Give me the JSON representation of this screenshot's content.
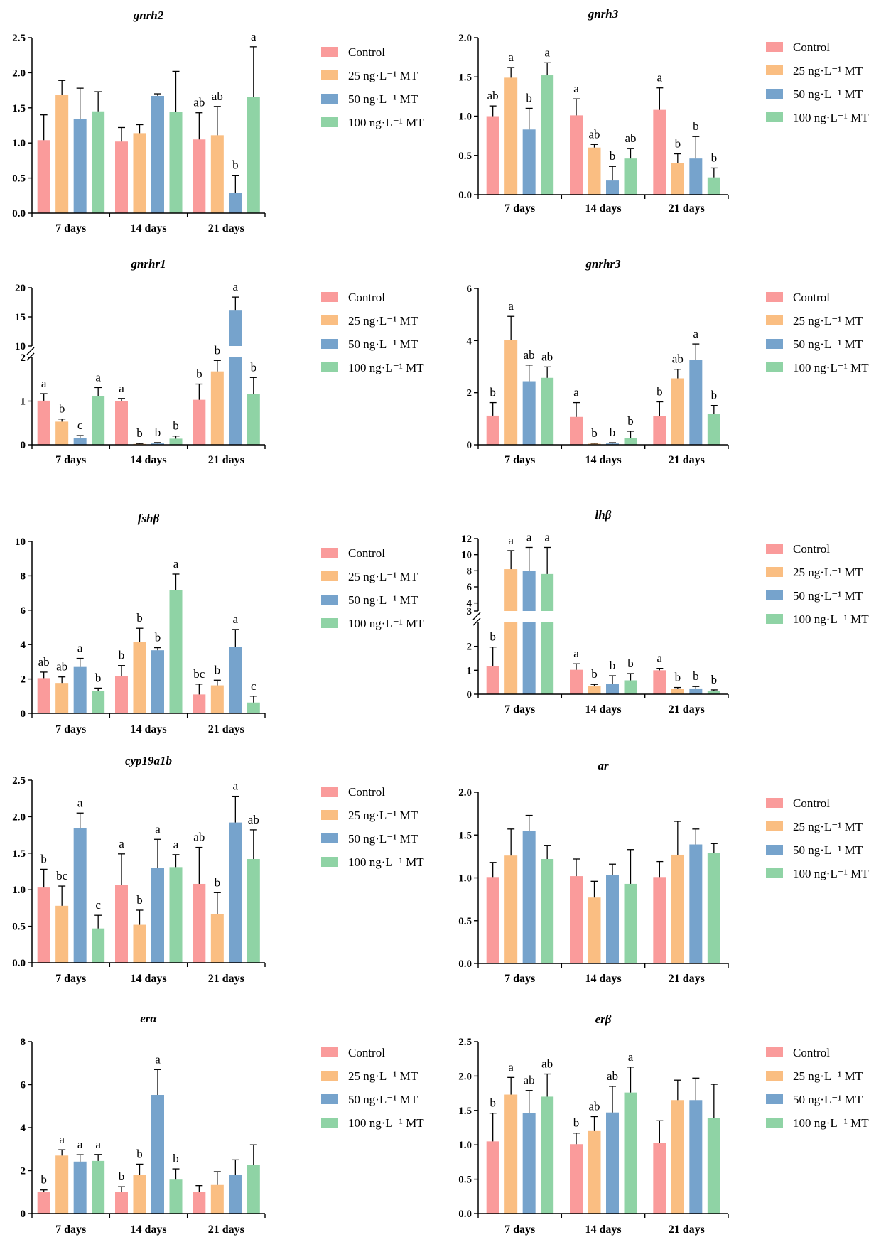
{
  "colors": {
    "Control": "#fa9b9b",
    "25 ng·L⁻¹ MT": "#fabe82",
    "50 ng·L⁻¹ MT": "#76a3cc",
    "100 ng·L⁻¹ MT": "#8fd3a5"
  },
  "chart_data": [
    {
      "type": "bar",
      "title": "gnrh2",
      "categories": [
        "7 days",
        "14 days",
        "21 days"
      ],
      "ylim": [
        0,
        2.5
      ],
      "yticks": [
        "0.0",
        "0.5",
        "1.0",
        "1.5",
        "2.0",
        "2.5"
      ],
      "legend": [
        "Control",
        "25 ng·L⁻¹ MT",
        "50 ng·L⁻¹ MT",
        "100 ng·L⁻¹ MT"
      ],
      "series": [
        {
          "name": "Control",
          "values": [
            1.04,
            1.02,
            1.05
          ],
          "errors": [
            0.36,
            0.2,
            0.38
          ],
          "labels": [
            "",
            "",
            "ab"
          ]
        },
        {
          "name": "25 ng·L⁻¹ MT",
          "values": [
            1.68,
            1.14,
            1.11
          ],
          "errors": [
            0.21,
            0.12,
            0.41
          ],
          "labels": [
            "",
            "",
            "ab"
          ]
        },
        {
          "name": "50 ng·L⁻¹ MT",
          "values": [
            1.34,
            1.67,
            0.29
          ],
          "errors": [
            0.44,
            0.03,
            0.25
          ],
          "labels": [
            "",
            "",
            "b"
          ]
        },
        {
          "name": "100 ng·L⁻¹ MT",
          "values": [
            1.45,
            1.44,
            1.65
          ],
          "errors": [
            0.28,
            0.58,
            0.72
          ],
          "labels": [
            "",
            "",
            "a"
          ]
        }
      ]
    },
    {
      "type": "bar",
      "title": "gnrh3",
      "categories": [
        "7 days",
        "14 days",
        "21 days"
      ],
      "ylim": [
        0,
        2.0
      ],
      "yticks": [
        "0.0",
        "0.5",
        "1.0",
        "1.5",
        "2.0"
      ],
      "legend": [
        "Control",
        "25 ng·L⁻¹ MT",
        "50 ng·L⁻¹ MT",
        "100 ng·L⁻¹ MT"
      ],
      "series": [
        {
          "name": "Control",
          "values": [
            1.0,
            1.01,
            1.08
          ],
          "errors": [
            0.13,
            0.21,
            0.28
          ],
          "labels": [
            "ab",
            "a",
            "a"
          ]
        },
        {
          "name": "25 ng·L⁻¹ MT",
          "values": [
            1.49,
            0.6,
            0.4
          ],
          "errors": [
            0.13,
            0.04,
            0.12
          ],
          "labels": [
            "a",
            "ab",
            "b"
          ]
        },
        {
          "name": "50 ng·L⁻¹ MT",
          "values": [
            0.83,
            0.18,
            0.46
          ],
          "errors": [
            0.27,
            0.18,
            0.28
          ],
          "labels": [
            "b",
            "b",
            "b"
          ]
        },
        {
          "name": "100 ng·L⁻¹ MT",
          "values": [
            1.52,
            0.46,
            0.22
          ],
          "errors": [
            0.16,
            0.13,
            0.12
          ],
          "labels": [
            "a",
            "ab",
            "b"
          ]
        }
      ]
    },
    {
      "type": "bar",
      "title": "gnrhr1",
      "categories": [
        "7 days",
        "14 days",
        "21 days"
      ],
      "ylim": [
        0,
        20
      ],
      "broken_axis": {
        "lower": [
          0,
          2
        ],
        "upper": [
          10,
          20
        ]
      },
      "yticks": [
        "0",
        "1",
        "2",
        "10",
        "15",
        "20"
      ],
      "legend": [
        "Control",
        "25 ng·L⁻¹ MT",
        "50 ng·L⁻¹ MT",
        "100 ng·L⁻¹ MT"
      ],
      "series": [
        {
          "name": "Control",
          "values": [
            1.01,
            1.0,
            1.03
          ],
          "errors": [
            0.16,
            0.06,
            0.36
          ],
          "labels": [
            "a",
            "a",
            "b"
          ]
        },
        {
          "name": "25 ng·L⁻¹ MT",
          "values": [
            0.53,
            0.02,
            1.68
          ],
          "errors": [
            0.06,
            0.01,
            0.25
          ],
          "labels": [
            "b",
            "b",
            "b"
          ]
        },
        {
          "name": "50 ng·L⁻¹ MT",
          "values": [
            0.16,
            0.03,
            16.2
          ],
          "errors": [
            0.05,
            0.02,
            2.2
          ],
          "labels": [
            "c",
            "b",
            "a"
          ]
        },
        {
          "name": "100 ng·L⁻¹ MT",
          "values": [
            1.11,
            0.14,
            1.17
          ],
          "errors": [
            0.2,
            0.06,
            0.37
          ],
          "labels": [
            "a",
            "b",
            "b"
          ]
        }
      ]
    },
    {
      "type": "bar",
      "title": "gnrhr3",
      "categories": [
        "7 days",
        "14 days",
        "21 days"
      ],
      "ylim": [
        0,
        6
      ],
      "yticks": [
        "0",
        "2",
        "4",
        "6"
      ],
      "legend": [
        "Control",
        "25 ng·L⁻¹ MT",
        "50 ng·L⁻¹ MT",
        "100 ng·L⁻¹ MT"
      ],
      "series": [
        {
          "name": "Control",
          "values": [
            1.12,
            1.07,
            1.1
          ],
          "errors": [
            0.5,
            0.55,
            0.55
          ],
          "labels": [
            "b",
            "a",
            "b"
          ]
        },
        {
          "name": "25 ng·L⁻¹ MT",
          "values": [
            4.03,
            0.04,
            2.55
          ],
          "errors": [
            0.9,
            0.02,
            0.35
          ],
          "labels": [
            "a",
            "b",
            "ab"
          ]
        },
        {
          "name": "50 ng·L⁻¹ MT",
          "values": [
            2.44,
            0.05,
            3.25
          ],
          "errors": [
            0.62,
            0.03,
            0.62
          ],
          "labels": [
            "ab",
            "b",
            "a"
          ]
        },
        {
          "name": "100 ng·L⁻¹ MT",
          "values": [
            2.57,
            0.27,
            1.19
          ],
          "errors": [
            0.42,
            0.25,
            0.32
          ],
          "labels": [
            "ab",
            "b",
            "b"
          ]
        }
      ]
    },
    {
      "type": "bar",
      "title": "fshβ",
      "categories": [
        "7 days",
        "14 days",
        "21 days"
      ],
      "ylim": [
        0,
        10
      ],
      "yticks": [
        "0",
        "2",
        "4",
        "6",
        "8",
        "10"
      ],
      "legend": [
        "Control",
        "25 ng·L⁻¹ MT",
        "50 ng·L⁻¹ MT",
        "100 ng·L⁻¹ MT"
      ],
      "series": [
        {
          "name": "Control",
          "values": [
            2.05,
            2.18,
            1.1
          ],
          "errors": [
            0.35,
            0.6,
            0.6
          ],
          "labels": [
            "ab",
            "b",
            "bc"
          ]
        },
        {
          "name": "25 ng·L⁻¹ MT",
          "values": [
            1.77,
            4.15,
            1.63
          ],
          "errors": [
            0.35,
            0.8,
            0.3
          ],
          "labels": [
            "ab",
            "b",
            "b"
          ]
        },
        {
          "name": "50 ng·L⁻¹ MT",
          "values": [
            2.7,
            3.67,
            3.88
          ],
          "errors": [
            0.5,
            0.15,
            1.0
          ],
          "labels": [
            "a",
            "b",
            "a"
          ]
        },
        {
          "name": "100 ng·L⁻¹ MT",
          "values": [
            1.32,
            7.15,
            0.63
          ],
          "errors": [
            0.15,
            0.95,
            0.37
          ],
          "labels": [
            "b",
            "a",
            "c"
          ]
        }
      ]
    },
    {
      "type": "bar",
      "title": "lhβ",
      "categories": [
        "7 days",
        "14 days",
        "21 days"
      ],
      "ylim": [
        0,
        12
      ],
      "broken_axis": {
        "lower": [
          0,
          3
        ],
        "upper": [
          3,
          12
        ]
      },
      "yticks": [
        "0",
        "1",
        "2",
        "3",
        "4",
        "6",
        "8",
        "10",
        "12"
      ],
      "legend": [
        "Control",
        "25 ng·L⁻¹ MT",
        "50 ng·L⁻¹ MT",
        "100 ng·L⁻¹ MT"
      ],
      "series": [
        {
          "name": "Control",
          "values": [
            1.17,
            1.02,
            1.0
          ],
          "errors": [
            0.8,
            0.25,
            0.08
          ],
          "labels": [
            "b",
            "a",
            "a"
          ]
        },
        {
          "name": "25 ng·L⁻¹ MT",
          "values": [
            8.2,
            0.35,
            0.22
          ],
          "errors": [
            2.3,
            0.06,
            0.06
          ],
          "labels": [
            "a",
            "b",
            "b"
          ]
        },
        {
          "name": "50 ng·L⁻¹ MT",
          "values": [
            8.0,
            0.42,
            0.24
          ],
          "errors": [
            2.9,
            0.35,
            0.08
          ],
          "labels": [
            "a",
            "b",
            "b"
          ]
        },
        {
          "name": "100 ng·L⁻¹ MT",
          "values": [
            7.6,
            0.58,
            0.12
          ],
          "errors": [
            3.3,
            0.28,
            0.06
          ],
          "labels": [
            "a",
            "b",
            "b"
          ]
        }
      ]
    },
    {
      "type": "bar",
      "title": "cyp19a1b",
      "categories": [
        "7 days",
        "14 days",
        "21 days"
      ],
      "ylim": [
        0,
        2.5
      ],
      "yticks": [
        "0.0",
        "0.5",
        "1.0",
        "1.5",
        "2.0",
        "2.5"
      ],
      "legend": [
        "Control",
        "25 ng·L⁻¹ MT",
        "50 ng·L⁻¹ MT",
        "100 ng·L⁻¹ MT"
      ],
      "series": [
        {
          "name": "Control",
          "values": [
            1.03,
            1.07,
            1.08
          ],
          "errors": [
            0.25,
            0.42,
            0.5
          ],
          "labels": [
            "b",
            "a",
            "ab"
          ]
        },
        {
          "name": "25 ng·L⁻¹ MT",
          "values": [
            0.78,
            0.52,
            0.67
          ],
          "errors": [
            0.27,
            0.2,
            0.29
          ],
          "labels": [
            "bc",
            "b",
            "b"
          ]
        },
        {
          "name": "50 ng·L⁻¹ MT",
          "values": [
            1.84,
            1.3,
            1.92
          ],
          "errors": [
            0.21,
            0.39,
            0.36
          ],
          "labels": [
            "a",
            "a",
            "a"
          ]
        },
        {
          "name": "100 ng·L⁻¹ MT",
          "values": [
            0.47,
            1.31,
            1.42
          ],
          "errors": [
            0.18,
            0.17,
            0.4
          ],
          "labels": [
            "c",
            "a",
            "ab"
          ]
        }
      ]
    },
    {
      "type": "bar",
      "title": "ar",
      "categories": [
        "7 days",
        "14 days",
        "21 days"
      ],
      "ylim": [
        0,
        2.0
      ],
      "yticks": [
        "0.0",
        "0.5",
        "1.0",
        "1.5",
        "2.0"
      ],
      "legend": [
        "Control",
        "25 ng·L⁻¹ MT",
        "50 ng·L⁻¹ MT",
        "100 ng·L⁻¹ MT"
      ],
      "series": [
        {
          "name": "Control",
          "values": [
            1.01,
            1.02,
            1.01
          ],
          "errors": [
            0.17,
            0.2,
            0.18
          ],
          "labels": [
            "",
            "",
            ""
          ]
        },
        {
          "name": "25 ng·L⁻¹ MT",
          "values": [
            1.26,
            0.77,
            1.27
          ],
          "errors": [
            0.31,
            0.19,
            0.39
          ],
          "labels": [
            "",
            "",
            ""
          ]
        },
        {
          "name": "50 ng·L⁻¹ MT",
          "values": [
            1.55,
            1.03,
            1.39
          ],
          "errors": [
            0.18,
            0.13,
            0.18
          ],
          "labels": [
            "",
            "",
            ""
          ]
        },
        {
          "name": "100 ng·L⁻¹ MT",
          "values": [
            1.22,
            0.93,
            1.29
          ],
          "errors": [
            0.16,
            0.4,
            0.11
          ],
          "labels": [
            "",
            "",
            ""
          ]
        }
      ]
    },
    {
      "type": "bar",
      "title": "erα",
      "categories": [
        "7 days",
        "14 days",
        "21 days"
      ],
      "ylim": [
        0,
        8
      ],
      "yticks": [
        "0",
        "2",
        "4",
        "6",
        "8"
      ],
      "legend": [
        "Control",
        "25 ng·L⁻¹ MT",
        "50 ng·L⁻¹ MT",
        "100 ng·L⁻¹ MT"
      ],
      "series": [
        {
          "name": "Control",
          "values": [
            1.02,
            1.0,
            1.0
          ],
          "errors": [
            0.08,
            0.25,
            0.3
          ],
          "labels": [
            "b",
            "b",
            ""
          ]
        },
        {
          "name": "25 ng·L⁻¹ MT",
          "values": [
            2.7,
            1.8,
            1.33
          ],
          "errors": [
            0.27,
            0.5,
            0.62
          ],
          "labels": [
            "a",
            "b",
            ""
          ]
        },
        {
          "name": "50 ng·L⁻¹ MT",
          "values": [
            2.42,
            5.52,
            1.8
          ],
          "errors": [
            0.32,
            1.18,
            0.7
          ],
          "labels": [
            "a",
            "a",
            ""
          ]
        },
        {
          "name": "100 ng·L⁻¹ MT",
          "values": [
            2.45,
            1.58,
            2.25
          ],
          "errors": [
            0.3,
            0.5,
            0.95
          ],
          "labels": [
            "a",
            "b",
            ""
          ]
        }
      ]
    },
    {
      "type": "bar",
      "title": "erβ",
      "categories": [
        "7 days",
        "14 days",
        "21 days"
      ],
      "ylim": [
        0,
        2.5
      ],
      "yticks": [
        "0.0",
        "0.5",
        "1.0",
        "1.5",
        "2.0",
        "2.5"
      ],
      "legend": [
        "Control",
        "25 ng·L⁻¹ MT",
        "50 ng·L⁻¹ MT",
        "100 ng·L⁻¹ MT"
      ],
      "series": [
        {
          "name": "Control",
          "values": [
            1.05,
            1.01,
            1.03
          ],
          "errors": [
            0.41,
            0.16,
            0.32
          ],
          "labels": [
            "b",
            "b",
            ""
          ]
        },
        {
          "name": "25 ng·L⁻¹ MT",
          "values": [
            1.73,
            1.2,
            1.65
          ],
          "errors": [
            0.25,
            0.21,
            0.29
          ],
          "labels": [
            "a",
            "ab",
            ""
          ]
        },
        {
          "name": "50 ng·L⁻¹ MT",
          "values": [
            1.46,
            1.47,
            1.65
          ],
          "errors": [
            0.33,
            0.38,
            0.32
          ],
          "labels": [
            "ab",
            "ab",
            ""
          ]
        },
        {
          "name": "100 ng·L⁻¹ MT",
          "values": [
            1.7,
            1.76,
            1.39
          ],
          "errors": [
            0.33,
            0.37,
            0.49
          ],
          "labels": [
            "ab",
            "a",
            ""
          ]
        }
      ]
    }
  ]
}
